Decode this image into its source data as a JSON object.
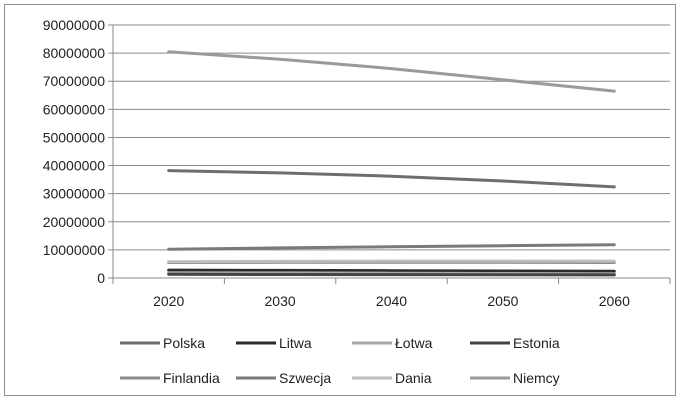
{
  "chart_data": {
    "type": "line",
    "title": "",
    "xlabel": "",
    "ylabel": "",
    "x": [
      "2020",
      "2030",
      "2040",
      "2050",
      "2060"
    ],
    "ylim": [
      0,
      90000000
    ],
    "yticks": [
      "0",
      "10000000",
      "20000000",
      "30000000",
      "40000000",
      "50000000",
      "60000000",
      "70000000",
      "80000000",
      "90000000"
    ],
    "grid": "horizontal",
    "legend": "bottom",
    "series": [
      {
        "name": "Polska",
        "color": "#6e6e6e",
        "values": [
          38200000,
          37400000,
          36200000,
          34500000,
          32400000
        ]
      },
      {
        "name": "Litwa",
        "color": "#2b2b2b",
        "values": [
          2800000,
          2700000,
          2600000,
          2500000,
          2400000
        ]
      },
      {
        "name": "Łotwa",
        "color": "#a8a8a8",
        "values": [
          1900000,
          1800000,
          1700000,
          1600000,
          1500000
        ]
      },
      {
        "name": "Estonia",
        "color": "#444444",
        "values": [
          1300000,
          1250000,
          1200000,
          1150000,
          1100000
        ]
      },
      {
        "name": "Finlandia",
        "color": "#8a8a8a",
        "values": [
          5500000,
          5600000,
          5600000,
          5600000,
          5500000
        ]
      },
      {
        "name": "Szwecja",
        "color": "#7a7a7a",
        "values": [
          10200000,
          10700000,
          11100000,
          11500000,
          11800000
        ]
      },
      {
        "name": "Dania",
        "color": "#bdbdbd",
        "values": [
          5800000,
          5900000,
          6000000,
          6000000,
          6000000
        ]
      },
      {
        "name": "Niemcy",
        "color": "#9a9a9a",
        "values": [
          80500000,
          77800000,
          74500000,
          70500000,
          66500000
        ]
      }
    ]
  }
}
